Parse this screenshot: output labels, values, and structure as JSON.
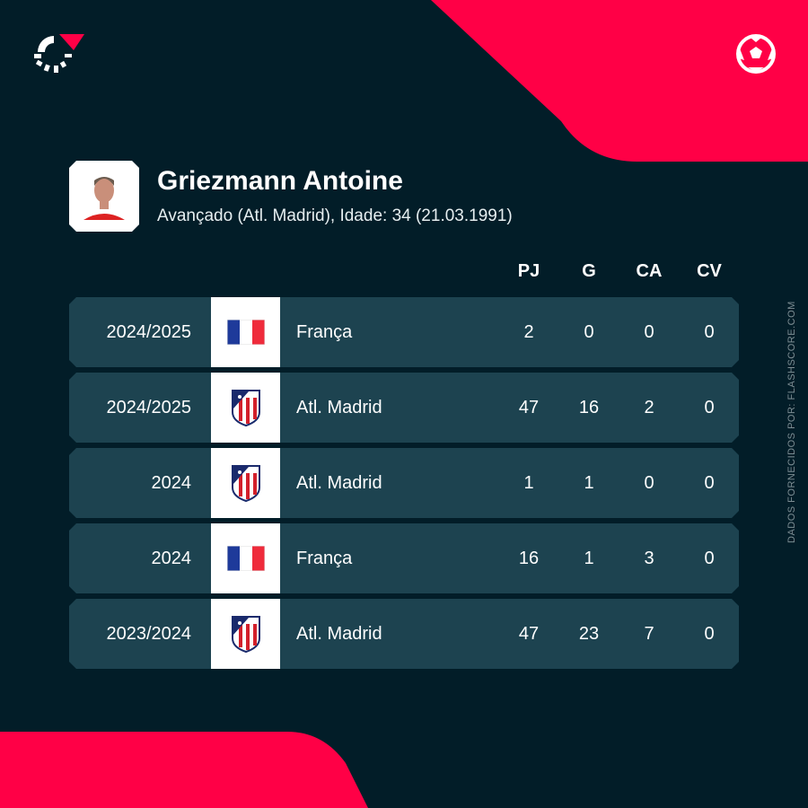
{
  "colors": {
    "background": "#021d28",
    "accent": "#ff0046",
    "row": "#1d4350"
  },
  "icons": {
    "logo": "flashscore-logo",
    "sport": "football-icon",
    "player": "player-photo"
  },
  "player": {
    "name": "Griezmann Antoine",
    "details": "Avançado (Atl. Madrid), Idade: 34 (21.03.1991)"
  },
  "columns": [
    "PJ",
    "G",
    "CA",
    "CV"
  ],
  "rows": [
    {
      "season": "2024/2025",
      "team": "França",
      "crest": "france-flag",
      "pj": "2",
      "g": "0",
      "ca": "0",
      "cv": "0"
    },
    {
      "season": "2024/2025",
      "team": "Atl. Madrid",
      "crest": "atletico-madrid-crest",
      "pj": "47",
      "g": "16",
      "ca": "2",
      "cv": "0"
    },
    {
      "season": "2024",
      "team": "Atl. Madrid",
      "crest": "atletico-madrid-crest",
      "pj": "1",
      "g": "1",
      "ca": "0",
      "cv": "0"
    },
    {
      "season": "2024",
      "team": "França",
      "crest": "france-flag",
      "pj": "16",
      "g": "1",
      "ca": "3",
      "cv": "0"
    },
    {
      "season": "2023/2024",
      "team": "Atl. Madrid",
      "crest": "atletico-madrid-crest",
      "pj": "47",
      "g": "23",
      "ca": "7",
      "cv": "0"
    }
  ],
  "credit": "DADOS FORNECIDOS POR: FLASHSCORE.COM"
}
